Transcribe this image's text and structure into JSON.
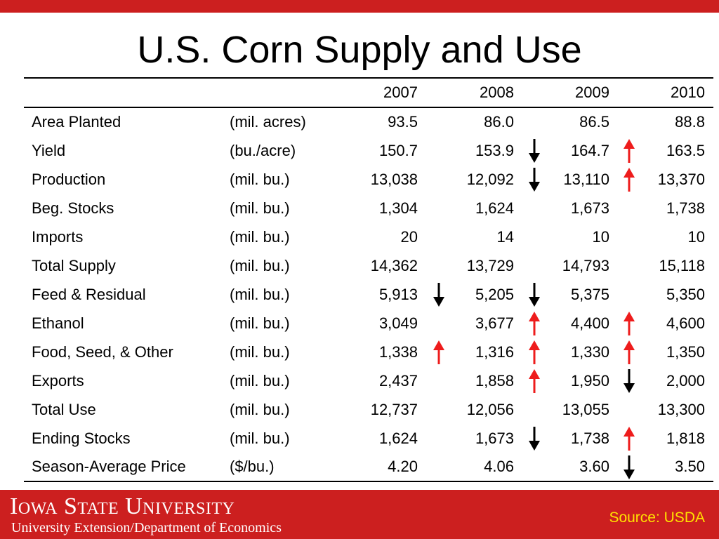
{
  "title": "U.S. Corn Supply and Use",
  "colors": {
    "brand_red": "#cc1f1f",
    "arrow_up": "#ee1c1c",
    "arrow_down": "#000000",
    "source_text": "#ffe200"
  },
  "table": {
    "columns": [
      "",
      "",
      "2007",
      "2008",
      "2009",
      "2010"
    ],
    "rows": [
      {
        "label": "Area Planted",
        "unit": "(mil. acres)",
        "values": [
          "93.5",
          "86.0",
          "86.5",
          "88.8"
        ],
        "arrows": [
          "",
          "",
          "",
          ""
        ]
      },
      {
        "label": "Yield",
        "unit": "(bu./acre)",
        "values": [
          "150.7",
          "153.9",
          "164.7",
          "163.5"
        ],
        "arrows": [
          "",
          "",
          "down-icon",
          "up-icon"
        ]
      },
      {
        "label": "Production",
        "unit": "(mil. bu.)",
        "values": [
          "13,038",
          "12,092",
          "13,110",
          "13,370"
        ],
        "arrows": [
          "",
          "",
          "down-icon",
          "up-icon"
        ]
      },
      {
        "label": "Beg. Stocks",
        "unit": "(mil. bu.)",
        "values": [
          "1,304",
          "1,624",
          "1,673",
          "1,738"
        ],
        "arrows": [
          "",
          "",
          "",
          ""
        ]
      },
      {
        "label": "Imports",
        "unit": "(mil. bu.)",
        "values": [
          "20",
          "14",
          "10",
          "10"
        ],
        "arrows": [
          "",
          "",
          "",
          ""
        ]
      },
      {
        "label": "Total Supply",
        "unit": "(mil. bu.)",
        "values": [
          "14,362",
          "13,729",
          "14,793",
          "15,118"
        ],
        "arrows": [
          "",
          "",
          "",
          ""
        ]
      },
      {
        "label": "Feed & Residual",
        "unit": "(mil. bu.)",
        "values": [
          "5,913",
          "5,205",
          "5,375",
          "5,350"
        ],
        "arrows": [
          "",
          "down-icon",
          "down-icon",
          ""
        ]
      },
      {
        "label": "Ethanol",
        "unit": "(mil. bu.)",
        "values": [
          "3,049",
          "3,677",
          "4,400",
          "4,600"
        ],
        "arrows": [
          "",
          "",
          "up-icon",
          "up-icon"
        ]
      },
      {
        "label": "Food, Seed, & Other",
        "unit": "(mil. bu.)",
        "values": [
          "1,338",
          "1,316",
          "1,330",
          "1,350"
        ],
        "arrows": [
          "",
          "up-icon",
          "up-icon",
          "up-icon"
        ]
      },
      {
        "label": "Exports",
        "unit": "(mil. bu.)",
        "values": [
          "2,437",
          "1,858",
          "1,950",
          "2,000"
        ],
        "arrows": [
          "",
          "",
          "up-icon",
          "down-icon"
        ]
      },
      {
        "label": "Total Use",
        "unit": "(mil. bu.)",
        "values": [
          "12,737",
          "12,056",
          "13,055",
          "13,300"
        ],
        "arrows": [
          "",
          "",
          "",
          ""
        ]
      },
      {
        "label": "Ending Stocks",
        "unit": "(mil. bu.)",
        "values": [
          "1,624",
          "1,673",
          "1,738",
          "1,818"
        ],
        "arrows": [
          "",
          "",
          "down-icon",
          "up-icon"
        ]
      },
      {
        "label": "Season-Average Price",
        "unit": "($/bu.)",
        "values": [
          "4.20",
          "4.06",
          "3.60",
          "3.50"
        ],
        "arrows": [
          "",
          "",
          "",
          "down-icon"
        ]
      }
    ]
  },
  "footer": {
    "university": "Iowa State University",
    "department": "University Extension/Department of Economics",
    "source": "Source: USDA"
  }
}
